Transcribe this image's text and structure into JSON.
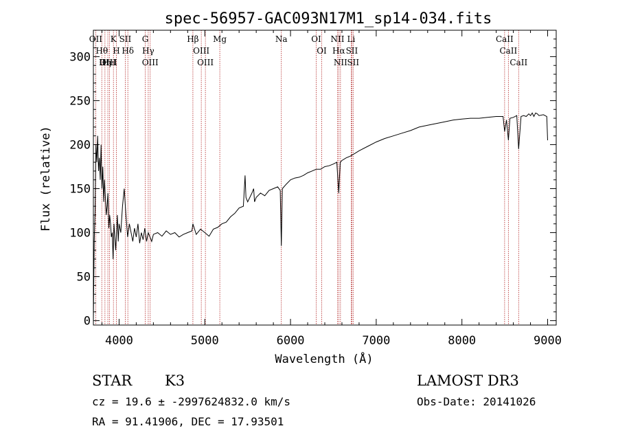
{
  "chart_data": {
    "type": "line",
    "title": "spec-56957-GAC093N17M1_sp14-034.fits",
    "xlabel": "Wavelength (Å)",
    "ylabel": "Flux (relative)",
    "xlim": [
      3700,
      9100
    ],
    "ylim": [
      -5,
      330
    ],
    "xticks": [
      4000,
      5000,
      6000,
      7000,
      8000,
      9000
    ],
    "yticks": [
      0,
      50,
      100,
      150,
      200,
      250,
      300
    ],
    "series": [
      {
        "name": "flux",
        "x": [
          3700,
          3710,
          3720,
          3730,
          3740,
          3750,
          3760,
          3770,
          3780,
          3790,
          3800,
          3810,
          3820,
          3830,
          3840,
          3850,
          3860,
          3870,
          3880,
          3890,
          3900,
          3910,
          3920,
          3930,
          3940,
          3950,
          3960,
          3970,
          3980,
          3990,
          4000,
          4020,
          4040,
          4060,
          4080,
          4100,
          4120,
          4140,
          4160,
          4180,
          4200,
          4220,
          4240,
          4260,
          4280,
          4300,
          4320,
          4340,
          4360,
          4380,
          4400,
          4450,
          4500,
          4550,
          4600,
          4650,
          4700,
          4750,
          4800,
          4850,
          4861,
          4900,
          4950,
          5000,
          5050,
          5100,
          5150,
          5200,
          5250,
          5300,
          5350,
          5400,
          5450,
          5470,
          5480,
          5500,
          5550,
          5570,
          5580,
          5600,
          5650,
          5700,
          5750,
          5800,
          5850,
          5880,
          5893,
          5905,
          5950,
          6000,
          6050,
          6100,
          6150,
          6200,
          6250,
          6300,
          6350,
          6400,
          6450,
          6500,
          6540,
          6563,
          6580,
          6600,
          6650,
          6700,
          6750,
          6800,
          6900,
          7000,
          7100,
          7200,
          7300,
          7400,
          7500,
          7600,
          7700,
          7800,
          7900,
          8000,
          8100,
          8200,
          8300,
          8400,
          8480,
          8498,
          8520,
          8542,
          8560,
          8600,
          8640,
          8662,
          8690,
          8720,
          8750,
          8780,
          8800,
          8820,
          8840,
          8860,
          8880,
          8900,
          8950,
          8990,
          9000
        ],
        "values": [
          0,
          90,
          125,
          200,
          180,
          210,
          170,
          185,
          160,
          200,
          150,
          175,
          135,
          160,
          140,
          120,
          130,
          145,
          105,
          120,
          110,
          95,
          100,
          70,
          110,
          95,
          80,
          100,
          120,
          90,
          110,
          100,
          130,
          150,
          120,
          95,
          110,
          100,
          90,
          105,
          95,
          110,
          88,
          100,
          92,
          105,
          90,
          100,
          95,
          90,
          98,
          100,
          96,
          102,
          98,
          100,
          95,
          98,
          100,
          102,
          110,
          98,
          104,
          100,
          96,
          104,
          106,
          110,
          112,
          118,
          122,
          128,
          130,
          165,
          140,
          135,
          145,
          150,
          135,
          140,
          145,
          142,
          148,
          150,
          152,
          148,
          85,
          150,
          155,
          160,
          162,
          163,
          165,
          168,
          170,
          172,
          172,
          175,
          176,
          178,
          180,
          145,
          180,
          182,
          185,
          187,
          190,
          193,
          198,
          203,
          207,
          210,
          213,
          216,
          220,
          222,
          224,
          226,
          228,
          229,
          230,
          230,
          231,
          232,
          232,
          215,
          228,
          205,
          230,
          231,
          233,
          195,
          232,
          233,
          232,
          235,
          233,
          236,
          232,
          236,
          235,
          233,
          234,
          232,
          205
        ]
      }
    ],
    "lines": [
      {
        "name": "Hθ",
        "wave": 3798
      },
      {
        "name": "OII",
        "wave": 3727
      },
      {
        "name": "Hη",
        "wave": 3835
      },
      {
        "name": "OIII",
        "wave": 3869
      },
      {
        "name": "HeI",
        "wave": 3889
      },
      {
        "name": "K",
        "wave": 3934
      },
      {
        "name": "H",
        "wave": 3968
      },
      {
        "name": "Hδ",
        "wave": 4102
      },
      {
        "name": "SII",
        "wave": 4072
      },
      {
        "name": "OIII",
        "wave": 4363
      },
      {
        "name": "Hγ",
        "wave": 4340
      },
      {
        "name": "G",
        "wave": 4305
      },
      {
        "name": "Hβ",
        "wave": 4861
      },
      {
        "name": "OIII",
        "wave": 4959
      },
      {
        "name": "OIII",
        "wave": 5007
      },
      {
        "name": "Mg",
        "wave": 5175
      },
      {
        "name": "Na",
        "wave": 5893
      },
      {
        "name": "OI",
        "wave": 6300
      },
      {
        "name": "OI",
        "wave": 6364
      },
      {
        "name": "NII",
        "wave": 6548
      },
      {
        "name": "Hα",
        "wave": 6563
      },
      {
        "name": "NII",
        "wave": 6583
      },
      {
        "name": "Li",
        "wave": 6708
      },
      {
        "name": "SII",
        "wave": 6716
      },
      {
        "name": "SII",
        "wave": 6731
      },
      {
        "name": "CaII",
        "wave": 8498
      },
      {
        "name": "CaII",
        "wave": 8542
      },
      {
        "name": "CaII",
        "wave": 8662
      }
    ]
  },
  "info": {
    "class": "STAR",
    "subclass": "K3",
    "survey": "LAMOST DR3",
    "cz": "cz = 19.6 ± -2997624832.0 km/s",
    "obsdate": "Obs-Date: 20141026",
    "radec": "RA =  91.41906, DEC =  17.93501"
  },
  "colors": {
    "axis": "#000000",
    "spectrum": "#000000",
    "lines": "#b22222"
  }
}
